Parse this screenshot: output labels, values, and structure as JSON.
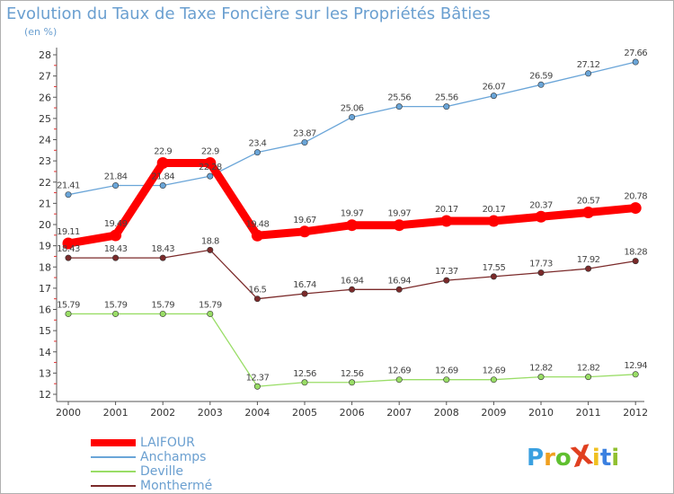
{
  "chart_data": {
    "type": "line",
    "title": "Evolution du Taux de Taxe Foncière sur les Propriétés Bâties",
    "subtitle": "(en %)",
    "x": [
      "2000",
      "2001",
      "2002",
      "2003",
      "2004",
      "2005",
      "2006",
      "2007",
      "2008",
      "2009",
      "2010",
      "2011",
      "2012"
    ],
    "ylim": [
      12,
      28
    ],
    "yticks": [
      "12",
      "13",
      "14",
      "15",
      "16",
      "17",
      "18",
      "19",
      "20",
      "21",
      "22",
      "23",
      "24",
      "25",
      "26",
      "27",
      "28"
    ],
    "grid": false,
    "legend_placement": "bottom-left",
    "series": [
      {
        "name": "LAIFOUR",
        "color": "#ff0000",
        "values": [
          19.11,
          19.49,
          22.9,
          22.9,
          19.48,
          19.67,
          19.97,
          19.97,
          20.17,
          20.17,
          20.37,
          20.57,
          20.78
        ],
        "labels": [
          "19.11",
          "19.49",
          "22.9",
          "22.9",
          "19.48",
          "19.67",
          "19.97",
          "19.97",
          "20.17",
          "20.17",
          "20.37",
          "20.57",
          "20.78"
        ]
      },
      {
        "name": "Anchamps",
        "color": "#6aa5d8",
        "values": [
          21.41,
          21.84,
          21.84,
          22.28,
          23.4,
          23.87,
          25.06,
          25.56,
          25.56,
          26.07,
          26.59,
          27.12,
          27.66
        ],
        "labels": [
          "21.41",
          "21.84",
          "21.84",
          "22.28",
          "23.4",
          "23.87",
          "25.06",
          "25.56",
          "25.56",
          "26.07",
          "26.59",
          "27.12",
          "27.66"
        ]
      },
      {
        "name": "Deville",
        "color": "#99dd66",
        "values": [
          15.79,
          15.79,
          15.79,
          15.79,
          12.37,
          12.56,
          12.56,
          12.69,
          12.69,
          12.69,
          12.82,
          12.82,
          12.94
        ],
        "labels": [
          "15.79",
          "15.79",
          "15.79",
          "15.79",
          "12.37",
          "12.56",
          "12.56",
          "12.69",
          "12.69",
          "12.69",
          "12.82",
          "12.82",
          "12.94"
        ]
      },
      {
        "name": "Monthermé",
        "color": "#7b2a2a",
        "values": [
          18.43,
          18.43,
          18.43,
          18.8,
          16.5,
          16.74,
          16.94,
          16.94,
          17.37,
          17.55,
          17.73,
          17.92,
          18.28
        ],
        "labels": [
          "18.43",
          "18.43",
          "18.43",
          "18.8",
          "16.5",
          "16.74",
          "16.94",
          "16.94",
          "17.37",
          "17.55",
          "17.73",
          "17.92",
          "18.28"
        ]
      }
    ]
  },
  "logo": {
    "text": "ProXiti",
    "letters": [
      "P",
      "r",
      "o",
      "X",
      "i",
      "t",
      "i"
    ],
    "colors": [
      "#3aa0e0",
      "#f0a020",
      "#60c030",
      "#e04020",
      "#f0c020",
      "#3a80e0",
      "#90c030"
    ]
  }
}
